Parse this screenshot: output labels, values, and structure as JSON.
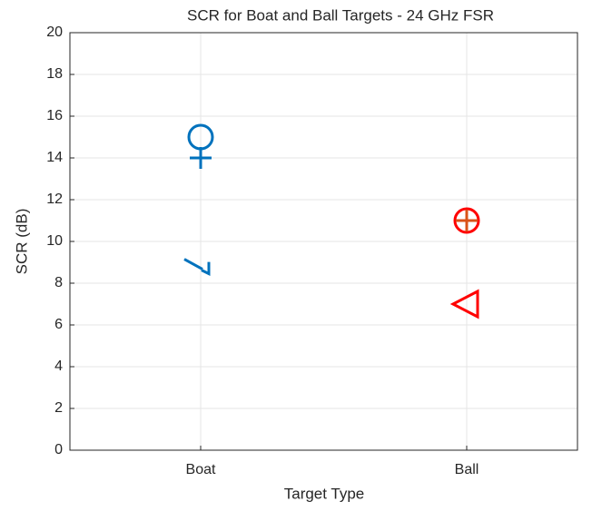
{
  "chart_data": {
    "type": "scatter",
    "title": "SCR for Boat and Ball Targets - 24 GHz FSR",
    "xlabel": "Target Type",
    "ylabel": "SCR (dB)",
    "categories": [
      "Boat",
      "Ball"
    ],
    "series": [
      {
        "color": "#0072bd",
        "marker": "circle",
        "values": [
          15,
          null
        ]
      },
      {
        "color": "#0072bd",
        "marker": "plus",
        "values": [
          14,
          null
        ]
      },
      {
        "color": "#0072bd",
        "marker": "broken-triangle",
        "values": [
          8.8,
          null
        ]
      },
      {
        "color": "#ff0000",
        "marker": "circle",
        "values": [
          null,
          11
        ]
      },
      {
        "color": "#d95319",
        "marker": "plus",
        "values": [
          null,
          11
        ]
      },
      {
        "color": "#ff0000",
        "marker": "triangle-left",
        "values": [
          null,
          7
        ]
      }
    ],
    "ylim": [
      0,
      20
    ],
    "yticks": [
      0,
      2,
      4,
      6,
      8,
      10,
      12,
      14,
      16,
      18,
      20
    ],
    "grid": true
  }
}
